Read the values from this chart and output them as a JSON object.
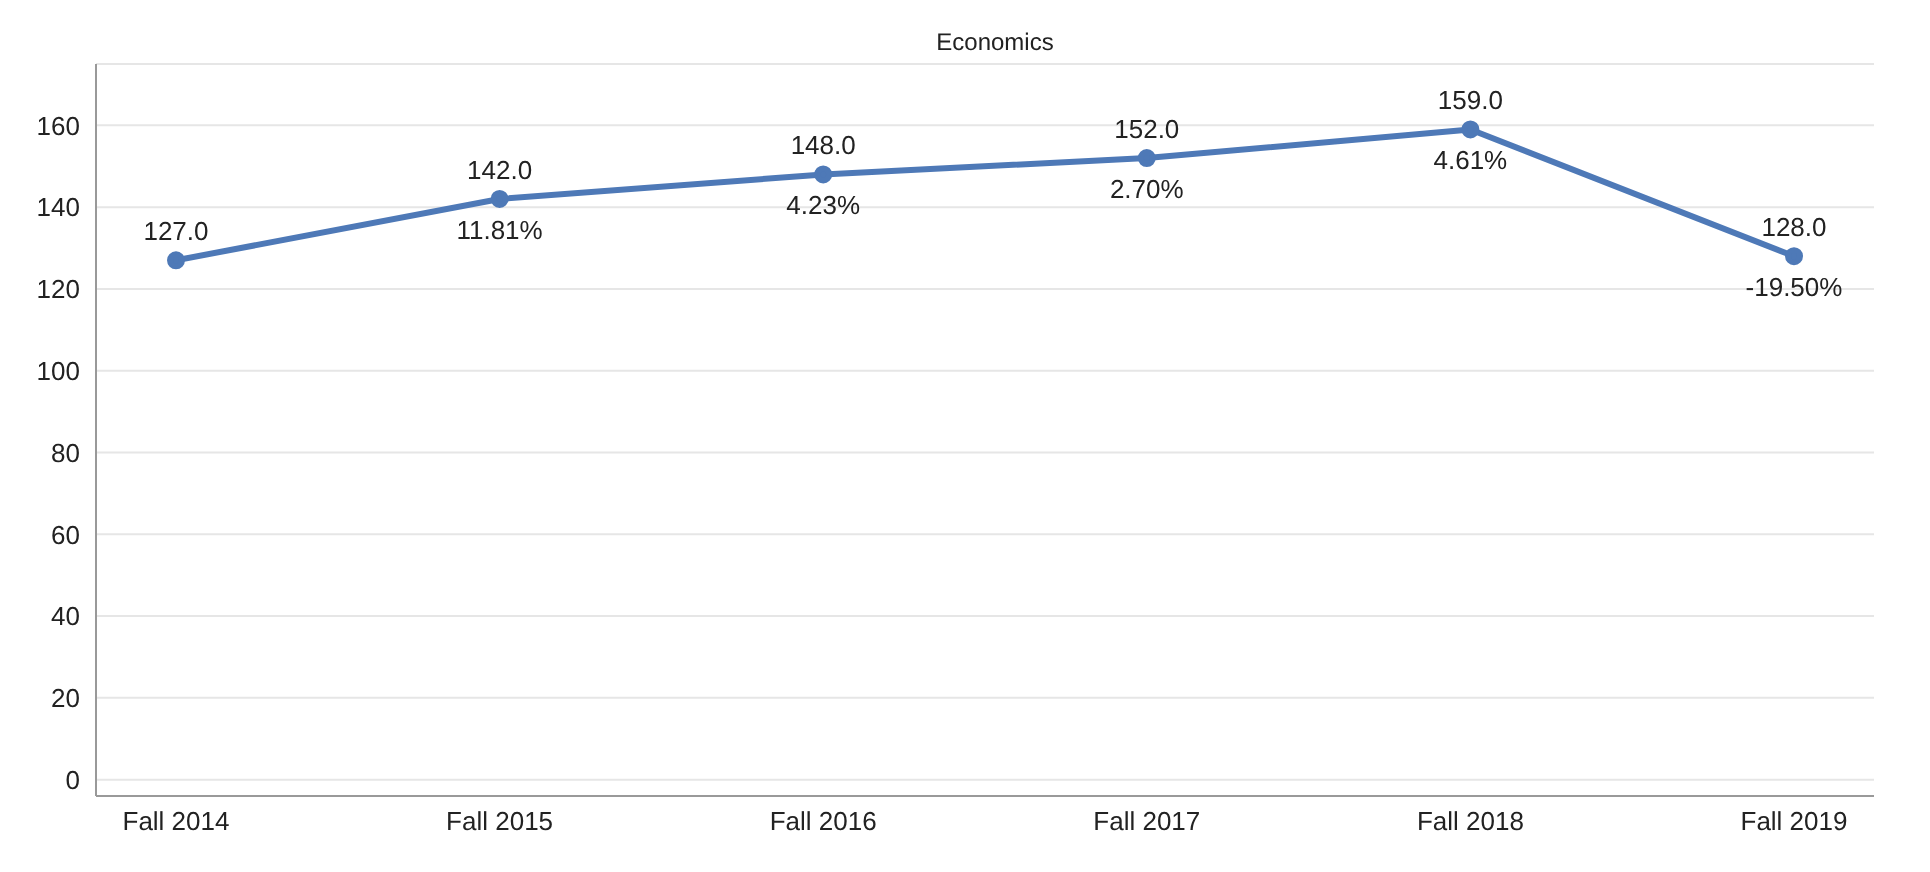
{
  "chart_data": {
    "type": "line",
    "title": "Economics",
    "categories": [
      "Fall 2014",
      "Fall 2015",
      "Fall 2016",
      "Fall 2017",
      "Fall 2018",
      "Fall 2019"
    ],
    "series": [
      {
        "color": "#4e79b7",
        "values": [
          127,
          142,
          148,
          152,
          159,
          128
        ],
        "value_labels": [
          "127.0",
          "142.0",
          "148.0",
          "152.0",
          "159.0",
          "128.0"
        ]
      }
    ],
    "annotations": [
      {
        "text": "11.81%",
        "x": "Fall 2015",
        "y": 142
      },
      {
        "text": "4.23%",
        "x": "Fall 2016",
        "y": 148
      },
      {
        "text": "2.70%",
        "x": "Fall 2017",
        "y": 152
      },
      {
        "text": "4.61%",
        "x": "Fall 2018",
        "y": 159
      },
      {
        "text": "-19.50%",
        "x": "Fall 2019",
        "y": 128
      }
    ],
    "ylim": [
      -4,
      175
    ],
    "yticks": [
      0,
      20,
      40,
      60,
      80,
      100,
      120,
      140,
      160
    ],
    "grid": "y",
    "marker": "circle",
    "line_style": "solid"
  }
}
